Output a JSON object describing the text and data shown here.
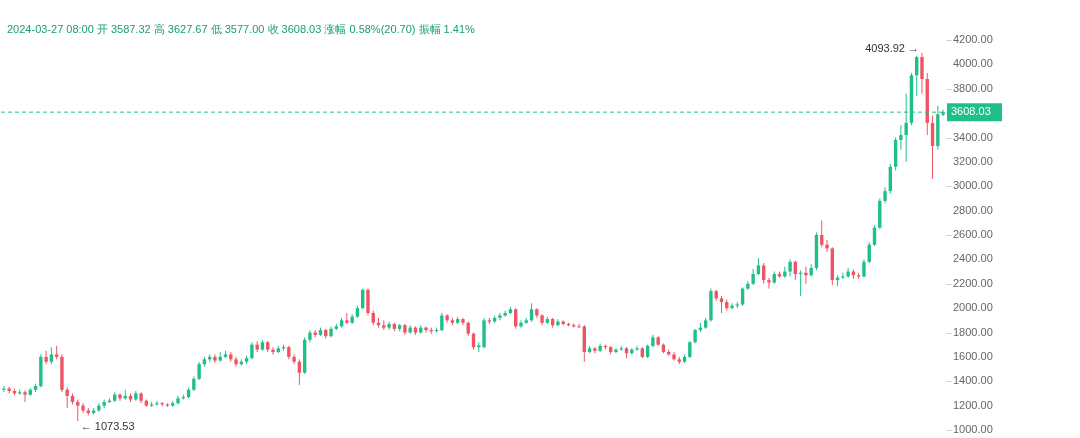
{
  "chart_data": {
    "type": "candlestick",
    "annotations": [
      "2024-03-27 08:00 开 3587.32 高 3627.67 低 3577.00 收 3608.03 涨幅 0.58%(20.70) 振幅 1.41%",
      "4093.92 →",
      "← 1073.53"
    ],
    "ylim": [
      1000,
      4200
    ],
    "yticks": [
      {
        "value": 1000,
        "label": "1000.00"
      },
      {
        "value": 1200,
        "label": "1200.00"
      },
      {
        "value": 1400,
        "label": "1400.00"
      },
      {
        "value": 1600,
        "label": "1600.00"
      },
      {
        "value": 1800,
        "label": "1800.00"
      },
      {
        "value": 2000,
        "label": "2000.00"
      },
      {
        "value": 2200,
        "label": "2200.00"
      },
      {
        "value": 2400,
        "label": "2400.00"
      },
      {
        "value": 2600,
        "label": "2600.00"
      },
      {
        "value": 2800,
        "label": "2800.00"
      },
      {
        "value": 3000,
        "label": "3000.00"
      },
      {
        "value": 3200,
        "label": "3200.00"
      },
      {
        "value": 3400,
        "label": "3400.00"
      },
      {
        "value": 3600,
        "label": null
      },
      {
        "value": 3800,
        "label": "3800.00"
      },
      {
        "value": 4000,
        "label": "4000.00"
      },
      {
        "value": 4200,
        "label": "4200.00"
      }
    ],
    "tick_labels": "y",
    "grid": false,
    "ref_lines": [
      {
        "axis": "y",
        "value": 3608.03,
        "label": "3608.03",
        "color": "#1fbf8a",
        "line_style": "dashed"
      }
    ],
    "categories": [
      null,
      null,
      null,
      null,
      null,
      null,
      null,
      null,
      null,
      null,
      null,
      null,
      null,
      null,
      null,
      null,
      null,
      null,
      null,
      null,
      null,
      null,
      null,
      null,
      null,
      null,
      null,
      null,
      null,
      null,
      null,
      null,
      null,
      null,
      null,
      null,
      null,
      null,
      null,
      null,
      null,
      null,
      null,
      null,
      null,
      null,
      null,
      null,
      null,
      null,
      null,
      null,
      null,
      null,
      null,
      null,
      null,
      null,
      null,
      null,
      null,
      null,
      null,
      null,
      null,
      null,
      null,
      null,
      null,
      null,
      null,
      null,
      null,
      null,
      null,
      null,
      null,
      null,
      null,
      null,
      null,
      null,
      null,
      null,
      null,
      null,
      null,
      null,
      null,
      null,
      null,
      null,
      null,
      null,
      null,
      null,
      null,
      null,
      null,
      null,
      null,
      null,
      null,
      null,
      null,
      null,
      null,
      null,
      null,
      null,
      null,
      null,
      null,
      null,
      null,
      null,
      null,
      null,
      null,
      null,
      null,
      null,
      null,
      null,
      null,
      null,
      null,
      null,
      null,
      null,
      null,
      null,
      null,
      null,
      null,
      null,
      null,
      null,
      null,
      null,
      null,
      null,
      null,
      null,
      null,
      null,
      null,
      null,
      null,
      null,
      null,
      null,
      null,
      null,
      null,
      null,
      null,
      null,
      null,
      null,
      null,
      null,
      null,
      null,
      null,
      null,
      null,
      null,
      null,
      null,
      null,
      null,
      null,
      null,
      null,
      null,
      null,
      null,
      null
    ],
    "ohlc": [
      [
        1330,
        1360,
        1310,
        1340
      ],
      [
        1340,
        1355,
        1300,
        1320
      ],
      [
        1320,
        1340,
        1285,
        1300
      ],
      [
        1300,
        1330,
        1290,
        1310
      ],
      [
        1310,
        1325,
        1230,
        1290
      ],
      [
        1290,
        1345,
        1280,
        1330
      ],
      [
        1330,
        1380,
        1310,
        1360
      ],
      [
        1360,
        1620,
        1350,
        1600
      ],
      [
        1600,
        1650,
        1540,
        1560
      ],
      [
        1560,
        1680,
        1540,
        1620
      ],
      [
        1620,
        1690,
        1580,
        1600
      ],
      [
        1600,
        1620,
        1310,
        1330
      ],
      [
        1330,
        1350,
        1180,
        1280
      ],
      [
        1280,
        1300,
        1210,
        1230
      ],
      [
        1230,
        1250,
        1073.53,
        1200
      ],
      [
        1200,
        1220,
        1140,
        1160
      ],
      [
        1160,
        1180,
        1120,
        1140
      ],
      [
        1140,
        1180,
        1130,
        1160
      ],
      [
        1160,
        1220,
        1150,
        1200
      ],
      [
        1200,
        1250,
        1180,
        1230
      ],
      [
        1230,
        1260,
        1220,
        1240
      ],
      [
        1240,
        1310,
        1230,
        1290
      ],
      [
        1290,
        1300,
        1240,
        1260
      ],
      [
        1260,
        1330,
        1250,
        1280
      ],
      [
        1280,
        1300,
        1230,
        1250
      ],
      [
        1250,
        1320,
        1240,
        1300
      ],
      [
        1300,
        1310,
        1220,
        1240
      ],
      [
        1240,
        1250,
        1190,
        1200
      ],
      [
        1200,
        1230,
        1190,
        1210
      ],
      [
        1210,
        1240,
        1200,
        1220
      ],
      [
        1220,
        1230,
        1195,
        1210
      ],
      [
        1210,
        1220,
        1190,
        1200
      ],
      [
        1200,
        1240,
        1190,
        1220
      ],
      [
        1220,
        1280,
        1210,
        1260
      ],
      [
        1260,
        1290,
        1250,
        1270
      ],
      [
        1270,
        1350,
        1260,
        1330
      ],
      [
        1330,
        1440,
        1320,
        1420
      ],
      [
        1420,
        1560,
        1410,
        1540
      ],
      [
        1540,
        1600,
        1520,
        1580
      ],
      [
        1580,
        1620,
        1560,
        1600
      ],
      [
        1600,
        1620,
        1550,
        1570
      ],
      [
        1570,
        1640,
        1560,
        1600
      ],
      [
        1600,
        1650,
        1590,
        1620
      ],
      [
        1620,
        1640,
        1560,
        1580
      ],
      [
        1580,
        1600,
        1520,
        1540
      ],
      [
        1540,
        1580,
        1530,
        1560
      ],
      [
        1560,
        1610,
        1540,
        1590
      ],
      [
        1590,
        1720,
        1580,
        1700
      ],
      [
        1700,
        1730,
        1640,
        1660
      ],
      [
        1660,
        1740,
        1650,
        1720
      ],
      [
        1720,
        1730,
        1640,
        1660
      ],
      [
        1660,
        1680,
        1620,
        1640
      ],
      [
        1640,
        1690,
        1630,
        1670
      ],
      [
        1670,
        1700,
        1650,
        1680
      ],
      [
        1680,
        1690,
        1580,
        1600
      ],
      [
        1600,
        1620,
        1540,
        1560
      ],
      [
        1560,
        1580,
        1370,
        1470
      ],
      [
        1470,
        1760,
        1460,
        1740
      ],
      [
        1740,
        1820,
        1720,
        1800
      ],
      [
        1800,
        1820,
        1760,
        1780
      ],
      [
        1780,
        1840,
        1770,
        1820
      ],
      [
        1820,
        1830,
        1750,
        1770
      ],
      [
        1770,
        1850,
        1760,
        1830
      ],
      [
        1830,
        1870,
        1820,
        1850
      ],
      [
        1850,
        1920,
        1840,
        1900
      ],
      [
        1900,
        1960,
        1870,
        1880
      ],
      [
        1880,
        1950,
        1870,
        1930
      ],
      [
        1930,
        2020,
        1920,
        2000
      ],
      [
        2000,
        2160,
        1990,
        2150
      ],
      [
        2150,
        2160,
        1940,
        1960
      ],
      [
        1960,
        1980,
        1860,
        1880
      ],
      [
        1880,
        1920,
        1840,
        1860
      ],
      [
        1860,
        1900,
        1820,
        1840
      ],
      [
        1840,
        1890,
        1820,
        1870
      ],
      [
        1870,
        1880,
        1810,
        1830
      ],
      [
        1830,
        1870,
        1810,
        1860
      ],
      [
        1860,
        1870,
        1780,
        1800
      ],
      [
        1800,
        1860,
        1790,
        1840
      ],
      [
        1840,
        1850,
        1780,
        1800
      ],
      [
        1800,
        1860,
        1790,
        1840
      ],
      [
        1840,
        1850,
        1800,
        1820
      ],
      [
        1820,
        1840,
        1790,
        1810
      ],
      [
        1810,
        1840,
        1800,
        1820
      ],
      [
        1820,
        1960,
        1810,
        1940
      ],
      [
        1940,
        1950,
        1880,
        1900
      ],
      [
        1900,
        1920,
        1860,
        1880
      ],
      [
        1880,
        1930,
        1870,
        1910
      ],
      [
        1910,
        1920,
        1860,
        1880
      ],
      [
        1880,
        1890,
        1770,
        1790
      ],
      [
        1790,
        1800,
        1660,
        1680
      ],
      [
        1680,
        1720,
        1640,
        1695
      ],
      [
        1680,
        1920,
        1670,
        1900
      ],
      [
        1900,
        1920,
        1870,
        1890
      ],
      [
        1890,
        1940,
        1880,
        1920
      ],
      [
        1920,
        1960,
        1900,
        1940
      ],
      [
        1940,
        1980,
        1930,
        1960
      ],
      [
        1960,
        2010,
        1950,
        1990
      ],
      [
        1990,
        2000,
        1830,
        1850
      ],
      [
        1850,
        1900,
        1840,
        1880
      ],
      [
        1880,
        1920,
        1870,
        1900
      ],
      [
        1900,
        2040,
        1890,
        1990
      ],
      [
        1990,
        2000,
        1920,
        1940
      ],
      [
        1940,
        1950,
        1860,
        1880
      ],
      [
        1880,
        1930,
        1870,
        1910
      ],
      [
        1910,
        1920,
        1840,
        1860
      ],
      [
        1860,
        1910,
        1850,
        1890
      ],
      [
        1890,
        1900,
        1860,
        1870
      ],
      [
        1870,
        1880,
        1850,
        1860
      ],
      [
        1860,
        1875,
        1840,
        1850
      ],
      [
        1850,
        1870,
        1840,
        1842
      ],
      [
        1850,
        1860,
        1560,
        1640
      ],
      [
        1640,
        1690,
        1630,
        1670
      ],
      [
        1670,
        1680,
        1630,
        1650
      ],
      [
        1650,
        1710,
        1640,
        1690
      ],
      [
        1690,
        1700,
        1660,
        1680
      ],
      [
        1680,
        1690,
        1620,
        1640
      ],
      [
        1640,
        1670,
        1630,
        1660
      ],
      [
        1660,
        1690,
        1650,
        1670
      ],
      [
        1670,
        1680,
        1590,
        1630
      ],
      [
        1630,
        1670,
        1620,
        1660
      ],
      [
        1660,
        1690,
        1650,
        1670
      ],
      [
        1670,
        1680,
        1590,
        1600
      ],
      [
        1600,
        1700,
        1590,
        1690
      ],
      [
        1690,
        1780,
        1680,
        1760
      ],
      [
        1760,
        1770,
        1690,
        1700
      ],
      [
        1700,
        1710,
        1630,
        1640
      ],
      [
        1640,
        1660,
        1610,
        1620
      ],
      [
        1620,
        1640,
        1570,
        1580
      ],
      [
        1580,
        1600,
        1540,
        1560
      ],
      [
        1560,
        1620,
        1550,
        1600
      ],
      [
        1600,
        1730,
        1590,
        1720
      ],
      [
        1720,
        1830,
        1710,
        1820
      ],
      [
        1820,
        1880,
        1800,
        1840
      ],
      [
        1840,
        1920,
        1830,
        1900
      ],
      [
        1900,
        2160,
        1890,
        2140
      ],
      [
        2140,
        2150,
        2060,
        2080
      ],
      [
        2080,
        2100,
        1960,
        2050
      ],
      [
        2050,
        2070,
        1980,
        2000
      ],
      [
        2000,
        2040,
        1990,
        2020
      ],
      [
        2020,
        2050,
        2000,
        2030
      ],
      [
        2030,
        2170,
        2020,
        2160
      ],
      [
        2160,
        2220,
        2150,
        2200
      ],
      [
        2200,
        2320,
        2190,
        2280
      ],
      [
        2280,
        2410,
        2270,
        2350
      ],
      [
        2350,
        2370,
        2200,
        2230
      ],
      [
        2230,
        2250,
        2160,
        2210
      ],
      [
        2210,
        2300,
        2200,
        2280
      ],
      [
        2280,
        2300,
        2250,
        2260
      ],
      [
        2260,
        2340,
        2250,
        2300
      ],
      [
        2300,
        2400,
        2260,
        2380
      ],
      [
        2380,
        2390,
        2230,
        2280
      ],
      [
        2280,
        2310,
        2100,
        2290
      ],
      [
        2290,
        2340,
        2200,
        2270
      ],
      [
        2270,
        2360,
        2260,
        2330
      ],
      [
        2330,
        2620,
        2310,
        2600
      ],
      [
        2600,
        2720,
        2500,
        2520
      ],
      [
        2520,
        2560,
        2460,
        2490
      ],
      [
        2490,
        2500,
        2190,
        2230
      ],
      [
        2230,
        2270,
        2180,
        2250
      ],
      [
        2250,
        2290,
        2240,
        2260
      ],
      [
        2260,
        2330,
        2250,
        2300
      ],
      [
        2300,
        2320,
        2240,
        2270
      ],
      [
        2270,
        2290,
        2240,
        2260
      ],
      [
        2260,
        2400,
        2250,
        2380
      ],
      [
        2380,
        2540,
        2370,
        2520
      ],
      [
        2520,
        2680,
        2510,
        2660
      ],
      [
        2660,
        2900,
        2650,
        2880
      ],
      [
        2880,
        2990,
        2860,
        2960
      ],
      [
        2960,
        3180,
        2940,
        3160
      ],
      [
        3160,
        3400,
        3130,
        3380
      ],
      [
        3380,
        3500,
        3300,
        3420
      ],
      [
        3420,
        3760,
        3200,
        3520
      ],
      [
        3520,
        3930,
        3500,
        3910
      ],
      [
        3910,
        4070,
        3740,
        4060
      ],
      [
        4060,
        4093.92,
        3760,
        3880
      ],
      [
        3880,
        3930,
        3420,
        3520
      ],
      [
        3520,
        3580,
        3060,
        3330
      ],
      [
        3330,
        3660,
        3300,
        3590
      ],
      [
        3587.32,
        3627.67,
        3577.0,
        3608.03
      ]
    ]
  }
}
